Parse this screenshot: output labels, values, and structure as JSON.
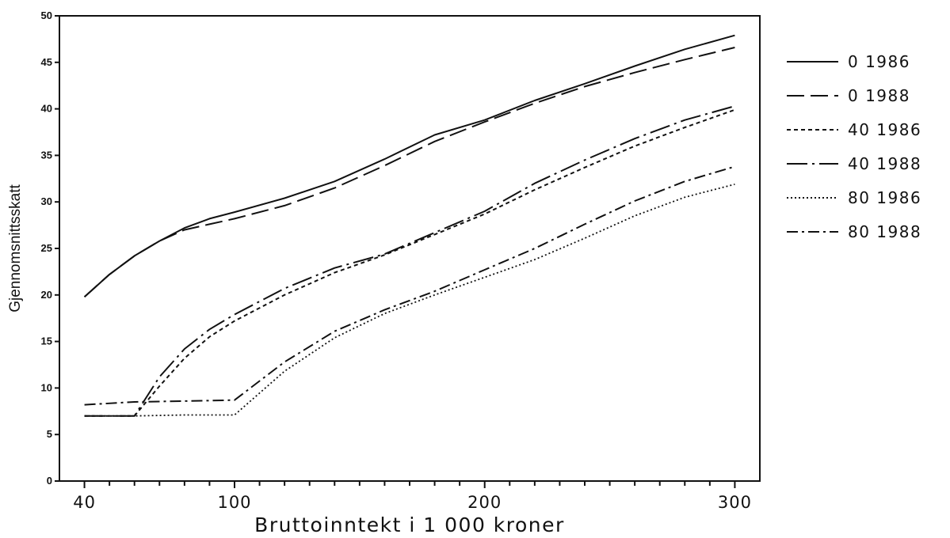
{
  "chart_data": {
    "type": "line",
    "title": "",
    "xlabel": "Bruttoinntekt i 1 000 kroner",
    "ylabel": "Gjennomsnittsskatt",
    "xlim": [
      30,
      310
    ],
    "ylim": [
      0,
      50
    ],
    "x_ticks": [
      40,
      100,
      200,
      300
    ],
    "y_ticks": [
      0,
      5,
      10,
      15,
      20,
      25,
      30,
      35,
      40,
      45,
      50
    ],
    "grid": false,
    "legend_position": "right",
    "series": [
      {
        "name": "0 1986",
        "dash": "solid",
        "points": [
          [
            40,
            19.8
          ],
          [
            50,
            22.2
          ],
          [
            60,
            24.2
          ],
          [
            70,
            25.8
          ],
          [
            80,
            27.2
          ],
          [
            90,
            28.2
          ],
          [
            100,
            28.9
          ],
          [
            120,
            30.4
          ],
          [
            140,
            32.2
          ],
          [
            160,
            34.6
          ],
          [
            180,
            37.2
          ],
          [
            200,
            38.8
          ],
          [
            220,
            40.9
          ],
          [
            240,
            42.7
          ],
          [
            260,
            44.6
          ],
          [
            280,
            46.4
          ],
          [
            300,
            47.9
          ]
        ]
      },
      {
        "name": "0 1988",
        "dash": "long-dash",
        "points": [
          [
            40,
            19.8
          ],
          [
            50,
            22.2
          ],
          [
            60,
            24.2
          ],
          [
            70,
            25.8
          ],
          [
            80,
            27.0
          ],
          [
            90,
            27.6
          ],
          [
            100,
            28.2
          ],
          [
            120,
            29.6
          ],
          [
            140,
            31.5
          ],
          [
            160,
            33.9
          ],
          [
            180,
            36.5
          ],
          [
            200,
            38.6
          ],
          [
            220,
            40.6
          ],
          [
            240,
            42.4
          ],
          [
            260,
            43.9
          ],
          [
            280,
            45.3
          ],
          [
            300,
            46.6
          ]
        ]
      },
      {
        "name": "40 1986",
        "dash": "short-dash",
        "points": [
          [
            40,
            7.0
          ],
          [
            50,
            7.0
          ],
          [
            60,
            7.0
          ],
          [
            70,
            10.2
          ],
          [
            80,
            13.2
          ],
          [
            90,
            15.5
          ],
          [
            100,
            17.2
          ],
          [
            120,
            20.0
          ],
          [
            140,
            22.4
          ],
          [
            160,
            24.3
          ],
          [
            180,
            26.5
          ],
          [
            200,
            28.7
          ],
          [
            220,
            31.3
          ],
          [
            240,
            33.7
          ],
          [
            260,
            36.0
          ],
          [
            280,
            38.0
          ],
          [
            300,
            39.9
          ]
        ]
      },
      {
        "name": "40 1988",
        "dash": "dash-dot-long",
        "points": [
          [
            40,
            7.0
          ],
          [
            50,
            7.0
          ],
          [
            60,
            7.0
          ],
          [
            70,
            11.2
          ],
          [
            80,
            14.2
          ],
          [
            90,
            16.3
          ],
          [
            100,
            17.9
          ],
          [
            120,
            20.7
          ],
          [
            140,
            22.9
          ],
          [
            160,
            24.4
          ],
          [
            180,
            26.7
          ],
          [
            200,
            29.0
          ],
          [
            220,
            32.0
          ],
          [
            240,
            34.5
          ],
          [
            260,
            36.8
          ],
          [
            280,
            38.8
          ],
          [
            300,
            40.3
          ]
        ]
      },
      {
        "name": "80 1986",
        "dash": "dotted",
        "points": [
          [
            40,
            7.0
          ],
          [
            60,
            7.0
          ],
          [
            80,
            7.1
          ],
          [
            100,
            7.1
          ],
          [
            120,
            11.8
          ],
          [
            140,
            15.4
          ],
          [
            160,
            18.0
          ],
          [
            180,
            20.0
          ],
          [
            200,
            21.9
          ],
          [
            220,
            23.8
          ],
          [
            240,
            26.1
          ],
          [
            260,
            28.5
          ],
          [
            280,
            30.5
          ],
          [
            300,
            31.9
          ]
        ]
      },
      {
        "name": "80 1988",
        "dash": "dash-dot",
        "points": [
          [
            40,
            8.2
          ],
          [
            60,
            8.5
          ],
          [
            80,
            8.6
          ],
          [
            100,
            8.7
          ],
          [
            120,
            12.8
          ],
          [
            140,
            16.1
          ],
          [
            160,
            18.4
          ],
          [
            180,
            20.4
          ],
          [
            200,
            22.7
          ],
          [
            220,
            25.0
          ],
          [
            240,
            27.6
          ],
          [
            260,
            30.1
          ],
          [
            280,
            32.2
          ],
          [
            300,
            33.8
          ]
        ]
      }
    ]
  }
}
